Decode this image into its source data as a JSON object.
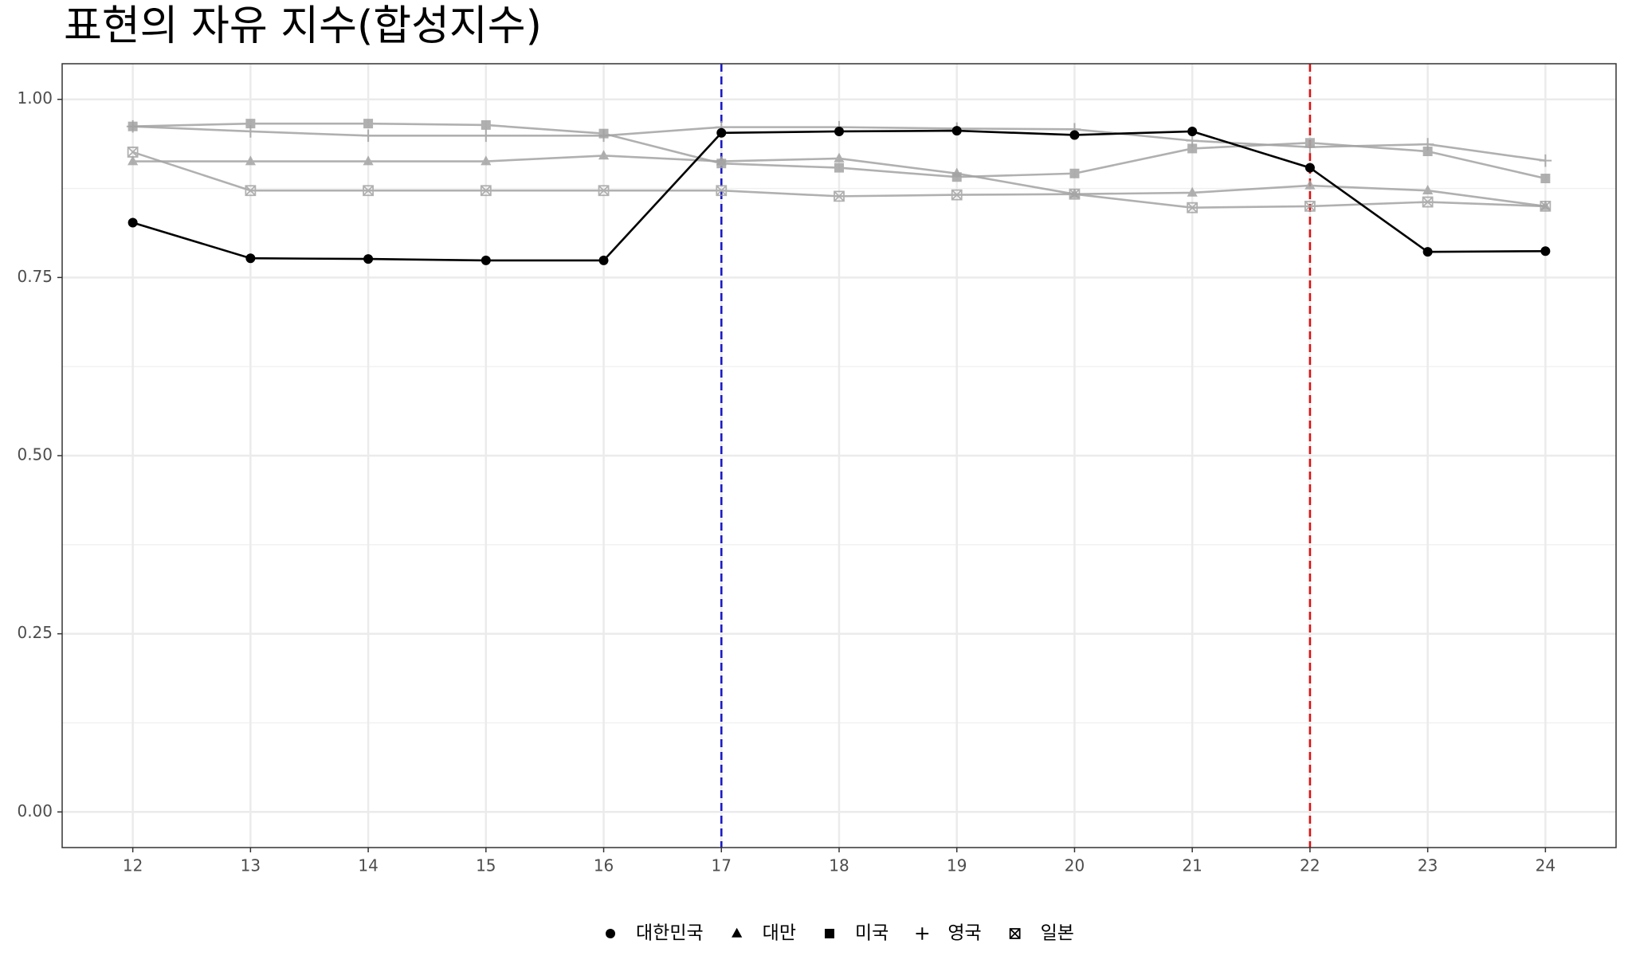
{
  "chart_data": {
    "type": "line",
    "title": "표현의 자유 지수(합성지수)",
    "x": [
      12,
      13,
      14,
      15,
      16,
      17,
      18,
      19,
      20,
      21,
      22,
      23,
      24
    ],
    "xlim": [
      11.4,
      24.6
    ],
    "xticks": [
      12,
      13,
      14,
      15,
      16,
      17,
      18,
      19,
      20,
      21,
      22,
      23,
      24
    ],
    "ylim": [
      -0.05,
      1.05
    ],
    "yticks": [
      {
        "value": 0,
        "label": "0.00"
      },
      0.25,
      {
        "value": 0.5,
        "label": "0.50"
      },
      0.75,
      {
        "value": 1,
        "label": "1.00"
      }
    ],
    "grid": true,
    "legend": "bottom",
    "vlines": [
      {
        "x": 17,
        "color": "#1a1ac8"
      },
      {
        "x": 22,
        "color": "#dd1111"
      }
    ],
    "series": [
      {
        "name": "대한민국",
        "color": "#000000",
        "shape": "circle",
        "values": [
          0.827,
          0.777,
          0.776,
          0.774,
          0.774,
          0.953,
          0.955,
          0.956,
          0.95,
          0.955,
          0.904,
          0.786,
          0.787
        ]
      },
      {
        "name": "대만",
        "color": "#a3a3a3",
        "shape": "triangle",
        "values": [
          0.913,
          0.913,
          0.913,
          0.913,
          0.921,
          0.913,
          0.917,
          0.896,
          0.867,
          0.869,
          0.879,
          0.872,
          0.85
        ]
      },
      {
        "name": "미국",
        "color": "#a3a3a3",
        "shape": "square",
        "values": [
          0.962,
          0.966,
          0.966,
          0.964,
          0.952,
          0.91,
          0.904,
          0.891,
          0.896,
          0.931,
          0.939,
          0.927,
          0.889
        ]
      },
      {
        "name": "영국",
        "color": "#a3a3a3",
        "shape": "plus",
        "values": [
          0.962,
          0.955,
          0.949,
          0.949,
          0.949,
          0.961,
          0.961,
          0.959,
          0.958,
          0.942,
          0.933,
          0.937,
          0.914
        ]
      },
      {
        "name": "일본",
        "color": "#a3a3a3",
        "shape": "square-x",
        "values": [
          0.926,
          0.872,
          0.872,
          0.872,
          0.872,
          0.872,
          0.864,
          0.866,
          0.867,
          0.848,
          0.85,
          0.856,
          0.85
        ]
      }
    ]
  }
}
